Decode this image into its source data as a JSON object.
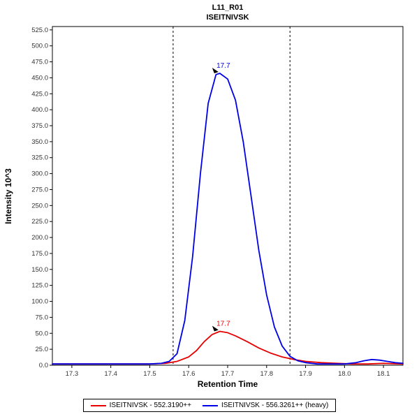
{
  "header": {
    "title": "L11_R01",
    "subtitle": "ISEITNIVSK"
  },
  "chart_data": {
    "type": "line",
    "title": "L11_R01",
    "subtitle": "ISEITNIVSK",
    "xlabel": "Retention Time",
    "ylabel": "Intensity 10^3",
    "xlim": [
      17.25,
      18.15
    ],
    "ylim": [
      0,
      525
    ],
    "x_ticks": [
      17.3,
      17.4,
      17.5,
      17.6,
      17.7,
      17.8,
      17.9,
      18.0,
      18.1
    ],
    "y_ticks": [
      0,
      25,
      50,
      75,
      100,
      125,
      150,
      175,
      200,
      225,
      250,
      275,
      300,
      325,
      350,
      375,
      400,
      425,
      450,
      475,
      500,
      525
    ],
    "grid": false,
    "legend_position": "bottom",
    "integration_boundaries": [
      17.56,
      17.86
    ],
    "series": [
      {
        "name": "ISEITNIVSK - 552.3190++",
        "color": "#e60000",
        "peak_annotation": {
          "label": "17.7",
          "x": 17.68,
          "y": 53
        },
        "points": {
          "x": [
            17.25,
            17.3,
            17.35,
            17.4,
            17.45,
            17.5,
            17.54,
            17.57,
            17.6,
            17.62,
            17.64,
            17.66,
            17.68,
            17.7,
            17.72,
            17.75,
            17.78,
            17.81,
            17.84,
            17.87,
            17.9,
            17.94,
            17.98,
            18.02,
            18.06,
            18.1,
            18.15
          ],
          "y": [
            2,
            2,
            2,
            2,
            2,
            2,
            3,
            6,
            13,
            23,
            37,
            48,
            53,
            51,
            46,
            37,
            27,
            19,
            13,
            9,
            6,
            4,
            3,
            2,
            2,
            3,
            2
          ]
        }
      },
      {
        "name": "ISEITNIVSK - 556.3261++ (heavy)",
        "color": "#0000e6",
        "peak_annotation": {
          "label": "17.7",
          "x": 17.68,
          "y": 457
        },
        "points": {
          "x": [
            17.25,
            17.3,
            17.35,
            17.4,
            17.45,
            17.5,
            17.53,
            17.55,
            17.57,
            17.59,
            17.61,
            17.63,
            17.65,
            17.67,
            17.68,
            17.7,
            17.72,
            17.74,
            17.76,
            17.78,
            17.8,
            17.82,
            17.84,
            17.86,
            17.88,
            17.9,
            17.93,
            17.96,
            18.0,
            18.03,
            18.05,
            18.07,
            18.09,
            18.11,
            18.13,
            18.15
          ],
          "y": [
            2,
            2,
            2,
            2,
            2,
            2,
            3,
            6,
            18,
            70,
            170,
            300,
            410,
            455,
            457,
            448,
            415,
            350,
            265,
            180,
            110,
            60,
            30,
            14,
            7,
            4,
            2,
            2,
            2,
            4,
            7,
            9,
            8,
            6,
            4,
            3
          ]
        }
      }
    ]
  }
}
